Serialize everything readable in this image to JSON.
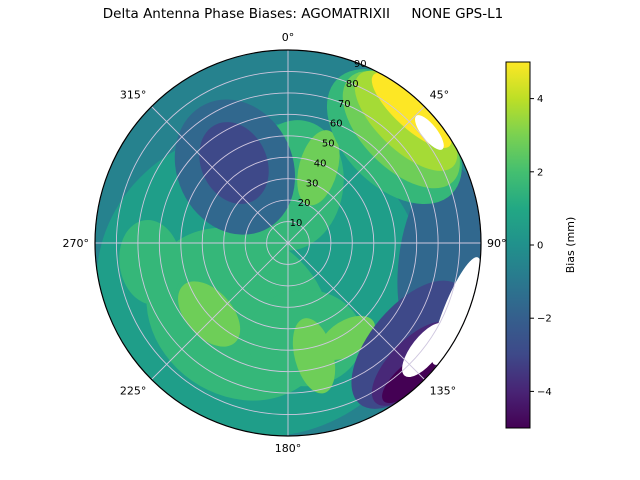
{
  "title": "Delta Antenna Phase Biases: AGOMATRIXII     NONE GPS-L1",
  "chart_data": {
    "type": "polar_contour",
    "title": "Delta Antenna Phase Biases: AGOMATRIXII     NONE GPS-L1",
    "colormap": "viridis",
    "azimuth_labels": [
      {
        "az": 0,
        "label": "0°"
      },
      {
        "az": 45,
        "label": "45°"
      },
      {
        "az": 90,
        "label": "90°"
      },
      {
        "az": 135,
        "label": "135°"
      },
      {
        "az": 180,
        "label": "180°"
      },
      {
        "az": 225,
        "label": "225°"
      },
      {
        "az": 270,
        "label": "270°"
      },
      {
        "az": 315,
        "label": "315°"
      }
    ],
    "radial_ticks": {
      "values": [
        10,
        20,
        30,
        40,
        50,
        60,
        70,
        80,
        90
      ],
      "max": 90,
      "label_azimuth_deg": 22
    },
    "grid": {
      "spoke_step_deg": 45,
      "color": "#cfc7df"
    },
    "background": {
      "color": "#26828e",
      "bias_mm": 0
    },
    "regions": [
      {
        "az": 215,
        "r": 0.25,
        "rx": 0.85,
        "ry": 0.8,
        "rot": 0,
        "color": "#1f9e89",
        "bias_mm": 0.8
      },
      {
        "az": 0,
        "r": 0.32,
        "rx": 0.34,
        "ry": 0.3,
        "rot": 0,
        "color": "#1f9e89",
        "bias_mm": 0.8
      },
      {
        "az": 5,
        "r": 0.3,
        "rx": 0.26,
        "ry": 0.34,
        "rot": 10,
        "color": "#35b779",
        "bias_mm": 1.6
      },
      {
        "az": 215,
        "r": 0.45,
        "rx": 0.5,
        "ry": 0.42,
        "rot": 35,
        "color": "#35b779",
        "bias_mm": 1.6
      },
      {
        "az": 170,
        "r": 0.5,
        "rx": 0.3,
        "ry": 0.25,
        "rot": 0,
        "color": "#35b779",
        "bias_mm": 1.6
      },
      {
        "az": 262,
        "r": 0.72,
        "rx": 0.22,
        "ry": 0.16,
        "rot": 262,
        "color": "#35b779",
        "bias_mm": 1.6
      },
      {
        "az": 228,
        "r": 0.55,
        "rx": 0.2,
        "ry": 0.12,
        "rot": 48,
        "color": "#6ece58",
        "bias_mm": 2.5
      },
      {
        "az": 167,
        "r": 0.6,
        "rx": 0.2,
        "ry": 0.1,
        "rot": 75,
        "color": "#6ece58",
        "bias_mm": 2.5
      },
      {
        "az": 148,
        "r": 0.58,
        "rx": 0.16,
        "ry": 0.09,
        "rot": 148,
        "color": "#6ece58",
        "bias_mm": 2.5
      },
      {
        "az": 22,
        "r": 0.42,
        "rx": 0.1,
        "ry": 0.2,
        "rot": 15,
        "color": "#6ece58",
        "bias_mm": 2.5
      },
      {
        "az": 325,
        "r": 0.48,
        "rx": 0.3,
        "ry": 0.36,
        "rot": -25,
        "color": "#31688e",
        "bias_mm": -1.2
      },
      {
        "az": 326,
        "r": 0.5,
        "rx": 0.17,
        "ry": 0.22,
        "rot": -25,
        "color": "#3e4989",
        "bias_mm": -2.2
      },
      {
        "az": 97,
        "r": 0.8,
        "rx": 0.5,
        "ry": 0.22,
        "rot": 97,
        "color": "#31688e",
        "bias_mm": -1.2
      },
      {
        "az": 45,
        "r": 0.78,
        "rx": 0.42,
        "ry": 0.26,
        "rot": 45,
        "color": "#35b779",
        "bias_mm": 1.6
      },
      {
        "az": 45,
        "r": 0.83,
        "rx": 0.38,
        "ry": 0.2,
        "rot": 45,
        "color": "#6ece58",
        "bias_mm": 2.5
      },
      {
        "az": 44,
        "r": 0.88,
        "rx": 0.34,
        "ry": 0.15,
        "rot": 44,
        "color": "#a5db36",
        "bias_mm": 3.5
      },
      {
        "az": 43,
        "r": 0.94,
        "rx": 0.27,
        "ry": 0.09,
        "rot": 43,
        "color": "#fde725",
        "bias_mm": 4.5
      },
      {
        "az": 130,
        "r": 0.82,
        "rx": 0.4,
        "ry": 0.2,
        "rot": 130,
        "color": "#3e4989",
        "bias_mm": -2.2
      },
      {
        "az": 134,
        "r": 0.9,
        "rx": 0.28,
        "ry": 0.12,
        "rot": 134,
        "color": "#482878",
        "bias_mm": -3.5
      },
      {
        "az": 138,
        "r": 0.94,
        "rx": 0.18,
        "ry": 0.07,
        "rot": 138,
        "color": "#440154",
        "bias_mm": -4.5
      },
      {
        "az": 112,
        "r": 0.94,
        "rx": 0.3,
        "ry": 0.065,
        "rot": 112,
        "color": "#ffffff",
        "bias_mm": null
      },
      {
        "az": 128,
        "r": 0.9,
        "rx": 0.17,
        "ry": 0.07,
        "rot": 128,
        "color": "#ffffff",
        "bias_mm": null
      },
      {
        "az": 52,
        "r": 0.93,
        "rx": 0.11,
        "ry": 0.04,
        "rot": 52,
        "color": "#ffffff",
        "bias_mm": null
      }
    ],
    "colorbar": {
      "label": "Bias (mm)",
      "range": [
        -5,
        5
      ],
      "ticks": [
        {
          "value": 4,
          "label": "4"
        },
        {
          "value": 2,
          "label": "2"
        },
        {
          "value": 0,
          "label": "0"
        },
        {
          "value": -2,
          "label": "−2"
        },
        {
          "value": -4,
          "label": "−4"
        }
      ],
      "gradient": [
        "#fde725",
        "#bddf26",
        "#7ad151",
        "#44bf70",
        "#22a884",
        "#21918c",
        "#2a788e",
        "#355f8d",
        "#3e4989",
        "#482475",
        "#440154"
      ]
    }
  }
}
